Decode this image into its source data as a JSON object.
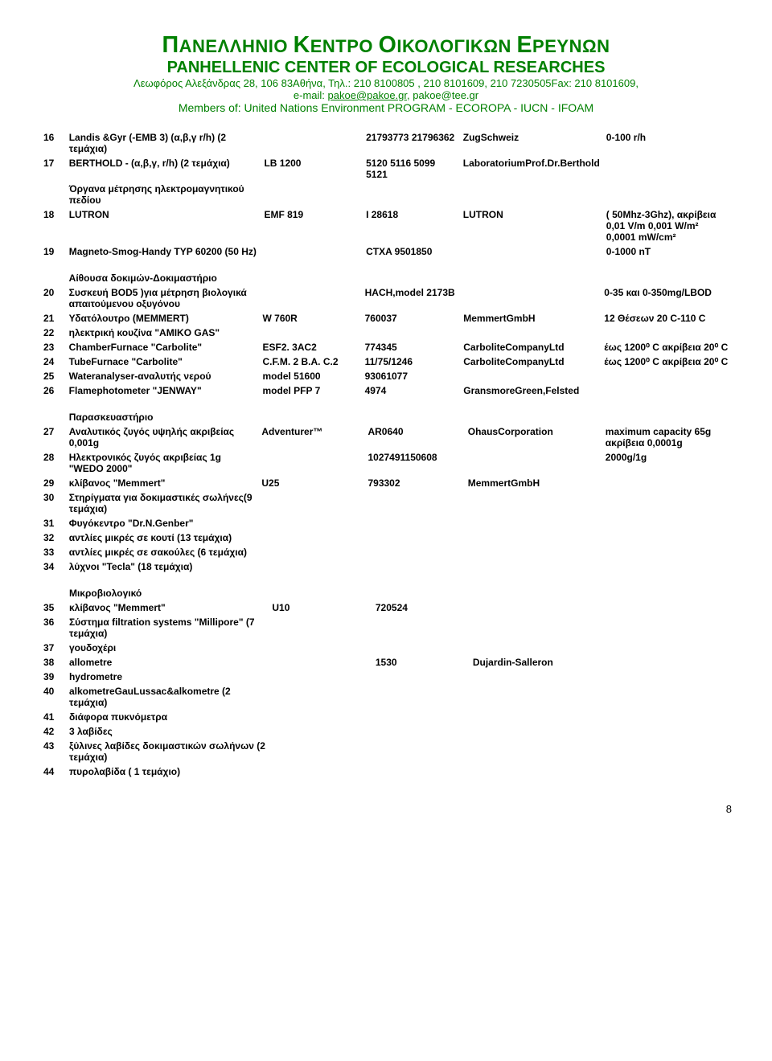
{
  "header": {
    "title_gr": "ΠΑΝΕΛΛΗΝΙΟ ΚΕΝΤΡΟ ΟΙΚΟΛΟΓΙΚΩΝ ΕΡΕΥΝΩΝ",
    "title_en": "PANHELLENIC CENTER OF ECOLOGICAL RESEARCHES",
    "address": "Λεωφόρος Αλεξάνδρας 28, 106 83Αθήνα, Τηλ.: 210 8100805 , 210 8101609, 210 7230505Fax: 210 8101609,",
    "email": "e-mail: pakoe@pakoe.gr, pakoe@tee.gr",
    "members": "Members of:  United Nations Environment PROGRAM  -  ECOROPA  -  IUCN - IFOAM"
  },
  "sections": {
    "s1_rows": [
      {
        "n": "16",
        "desc": "Landis &Gyr (-EMB 3) (α,β,γ r/h) (2 τεμάχια)",
        "model": "",
        "serial": "21793773 21796362",
        "mfr": "ZugSchweiz",
        "spec": "0-100 r/h"
      },
      {
        "n": "17",
        "desc": "BERTHOLD - (α,β,γ, r/h) (2 τεμάχια)",
        "model": "LB 1200",
        "serial": "5120 5116 5099 5121",
        "mfr": "LaboratoriumProf.Dr.Berthold",
        "spec": ""
      },
      {
        "n": "",
        "desc": "Όργανα μέτρησης ηλεκτρομαγνητικού πεδίου",
        "model": "",
        "serial": "",
        "mfr": "",
        "spec": ""
      },
      {
        "n": "18",
        "desc": "LUTRON",
        "model": "EMF 819",
        "serial": "I 28618",
        "mfr": "LUTRON",
        "spec": "( 50Mhz-3Ghz), ακρίβεια 0,01 V/m 0,001 W/m² 0,0001 mW/cm²"
      },
      {
        "n": "19",
        "desc": "Magneto-Smog-Handy TYP 60200 (50 Hz)",
        "model": "",
        "serial": "CTXA 9501850",
        "mfr": "",
        "spec": "0-1000 nT"
      }
    ],
    "s2_title": "Αίθουσα δοκιμών-Δοκιμαστήριο",
    "s2_rows": [
      {
        "n": "20",
        "desc": "Συσκευή BOD5 )για μέτρηση βιολογικά απαιτούμενου οξυγόνου",
        "model": "",
        "serial": "HACH,model 2173B",
        "mfr": "",
        "spec": "0-35 και 0-350mg/LBOD"
      },
      {
        "n": "21",
        "desc": "Υδατόλουτρο (MEMMERT)",
        "model": "W 760R",
        "serial": "760037",
        "mfr": "MemmertGmbH",
        "spec": "12 Θέσεων 20 C-110 C"
      },
      {
        "n": "22",
        "desc": "ηλεκτρική κουζίνα \"AMIKO GAS\"",
        "model": "",
        "serial": "",
        "mfr": "",
        "spec": ""
      },
      {
        "n": "23",
        "desc": "ChamberFurnace \"Carbolite\"",
        "model": "ESF2. 3AC2",
        "serial": "774345",
        "mfr": "CarboliteCompanyLtd",
        "spec": "έως 1200⁰ C ακρίβεια 20⁰ C"
      },
      {
        "n": "24",
        "desc": "TubeFurnace \"Carbolite\"",
        "model": "C.F.M. 2 B.A. C.2",
        "serial": "11/75/1246",
        "mfr": "CarboliteCompanyLtd",
        "spec": "έως 1200⁰ C ακρίβεια 20⁰ C"
      },
      {
        "n": "25",
        "desc": "Wateranalyser-αναλυτής νερού",
        "model": "model 51600",
        "serial": "93061077",
        "mfr": "",
        "spec": ""
      },
      {
        "n": "26",
        "desc": "Flamephotometer \"JENWAY\"",
        "model": "model PFP 7",
        "serial": "4974",
        "mfr": "GransmoreGreen,Felsted",
        "spec": ""
      }
    ],
    "s3_title": "Παρασκευαστήριο",
    "s3_rows": [
      {
        "n": "27",
        "desc": "Αναλυτικός ζυγός υψηλής ακριβείας 0,001g",
        "model": "Adventurer™",
        "serial": "AR0640",
        "mfr": "OhausCorporation",
        "spec": "maximum capacity 65g ακρίβεια 0,0001g"
      },
      {
        "n": "28",
        "desc": "Ηλεκτρονικός ζυγός ακριβείας 1g \"WEDO 2000\"",
        "model": "",
        "serial": "1027491150608",
        "mfr": "",
        "spec": "2000g/1g"
      },
      {
        "n": "29",
        "desc": "κλίβανος \"Memmert\"",
        "model": "U25",
        "serial": "793302",
        "mfr": "MemmertGmbH",
        "spec": ""
      },
      {
        "n": "30",
        "desc": "Στηρίγματα για δοκιμαστικές σωλήνες(9 τεμάχια)",
        "model": "",
        "serial": "",
        "mfr": "",
        "spec": ""
      },
      {
        "n": "31",
        "desc": "Φυγόκεντρο \"Dr.N.Genber\"",
        "model": "",
        "serial": "",
        "mfr": "",
        "spec": ""
      },
      {
        "n": "32",
        "desc": "αντλίες μικρές σε κουτί (13 τεμάχια)",
        "model": "",
        "serial": "",
        "mfr": "",
        "spec": ""
      },
      {
        "n": "33",
        "desc": "αντλίες μικρές σε σακούλες (6 τεμάχια)",
        "model": "",
        "serial": "",
        "mfr": "",
        "spec": ""
      },
      {
        "n": "34",
        "desc": "λύχνοι \"Tecla\" (18 τεμάχια)",
        "model": "",
        "serial": "",
        "mfr": "",
        "spec": ""
      }
    ],
    "s4_title": "Μικροβιολογικό",
    "s4_rows": [
      {
        "n": "35",
        "desc": "κλίβανος \"Memmert\"",
        "model": "U10",
        "serial": "720524",
        "mfr": "",
        "spec": ""
      },
      {
        "n": "36",
        "desc": "Σύστημα filtration systems \"Millipore\" (7 τεμάχια)",
        "model": "",
        "serial": "",
        "mfr": "",
        "spec": ""
      },
      {
        "n": "37",
        "desc": "γουδοχέρι",
        "model": "",
        "serial": "",
        "mfr": "",
        "spec": ""
      },
      {
        "n": "38",
        "desc": "allometre",
        "model": "",
        "serial": "1530",
        "mfr": "Dujardin-Salleron",
        "spec": ""
      },
      {
        "n": "39",
        "desc": "hydrometre",
        "model": "",
        "serial": "",
        "mfr": "",
        "spec": ""
      },
      {
        "n": "40",
        "desc": "alkometreGauLussac&alkometre (2 τεμάχια)",
        "model": "",
        "serial": "",
        "mfr": "",
        "spec": ""
      },
      {
        "n": "41",
        "desc": "διάφορα πυκνόμετρα",
        "model": "",
        "serial": "",
        "mfr": "",
        "spec": ""
      },
      {
        "n": "42",
        "desc": "3 λαβίδες",
        "model": "",
        "serial": "",
        "mfr": "",
        "spec": ""
      },
      {
        "n": "43",
        "desc": "ξύλινες λαβίδες δοκιμαστικών σωλήνων (2 τεμάχια)",
        "model": "",
        "serial": "",
        "mfr": "",
        "spec": ""
      },
      {
        "n": "44",
        "desc": "πυρολαβίδα ( 1 τεμάχιο)",
        "model": "",
        "serial": "",
        "mfr": "",
        "spec": ""
      }
    ]
  },
  "page": "8"
}
